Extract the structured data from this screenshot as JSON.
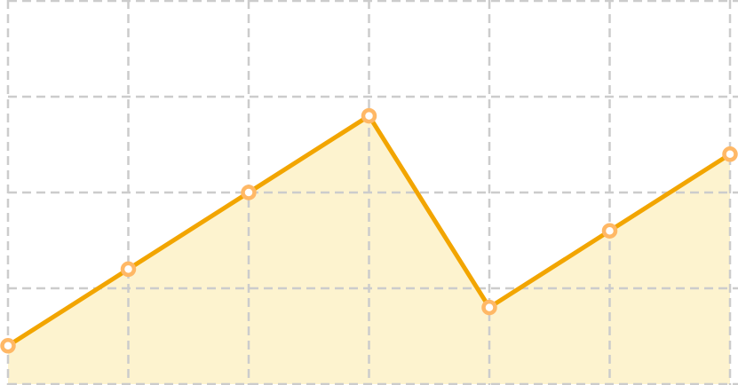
{
  "chart_data": {
    "type": "area",
    "x": [
      0,
      1,
      2,
      3,
      4,
      5,
      6
    ],
    "xlim": [
      0,
      6
    ],
    "ylim": [
      0,
      4
    ],
    "grid": true,
    "series": [
      {
        "values": [
          0.4,
          1.2,
          2.0,
          2.8,
          0.8,
          1.6,
          2.4
        ]
      }
    ],
    "colors": {
      "line": "#f2a500",
      "point_stroke": "#ffb866",
      "fill": "#fdf3cf",
      "grid": "#cccccc"
    }
  }
}
